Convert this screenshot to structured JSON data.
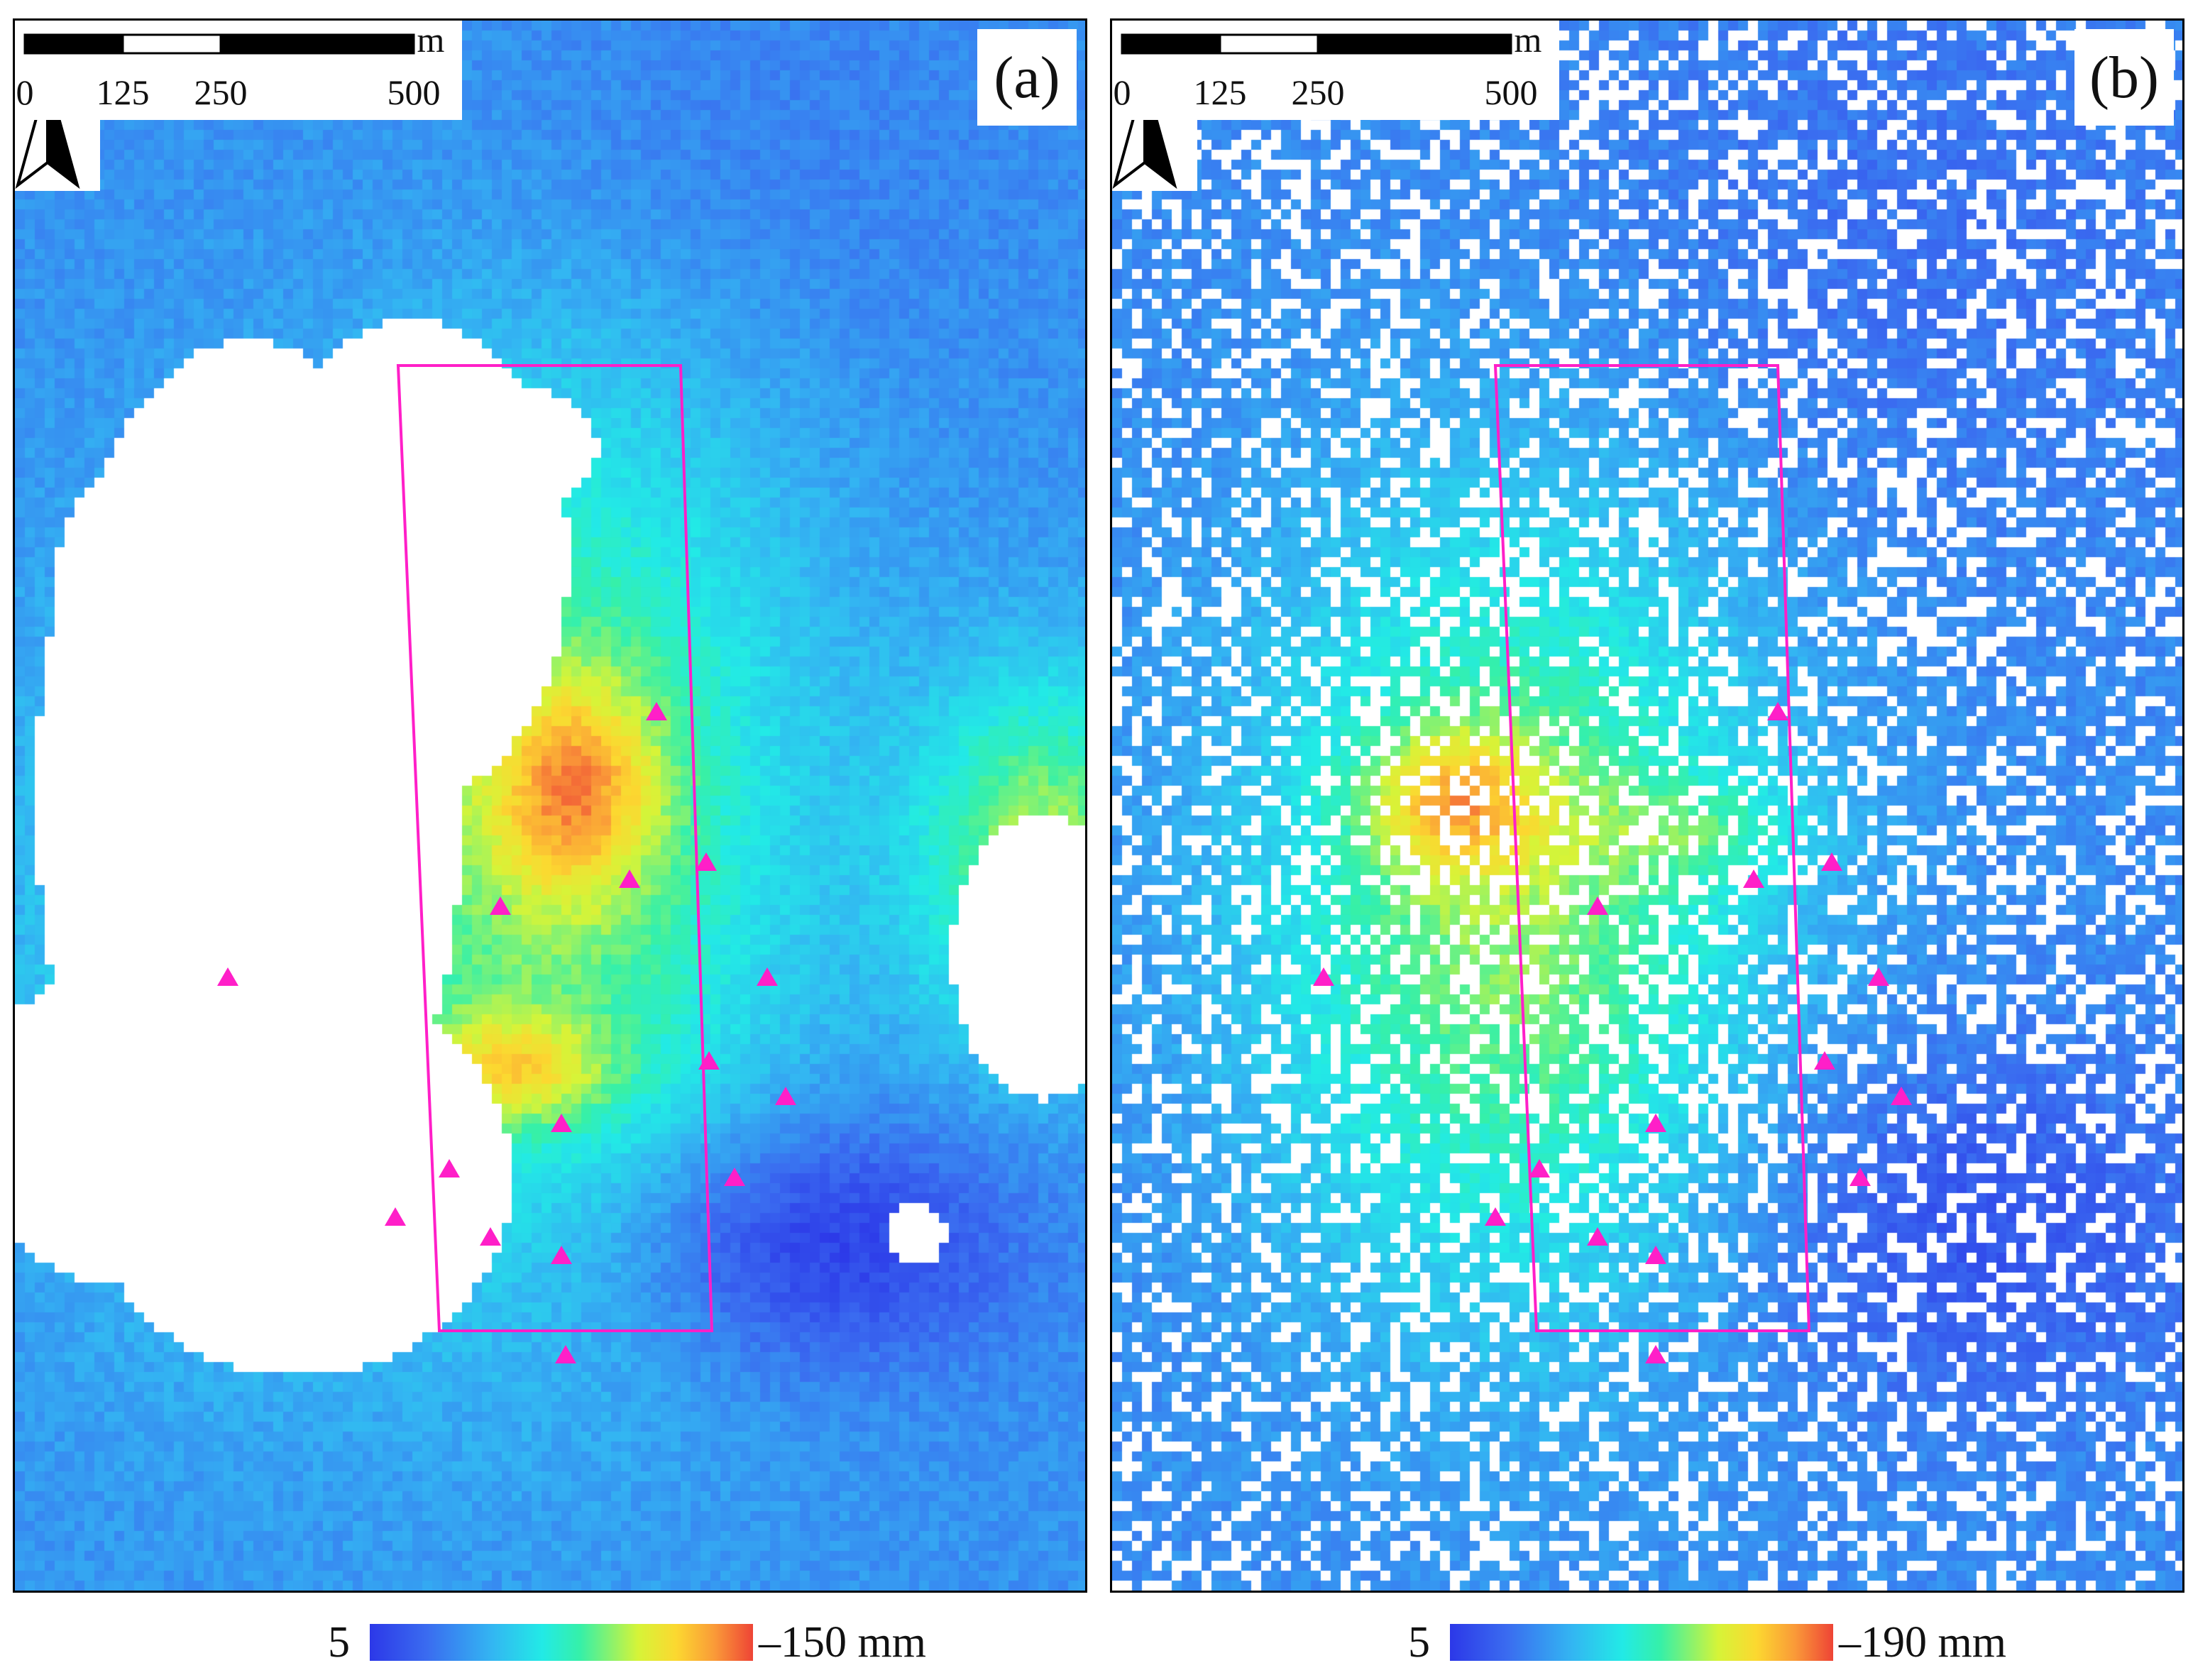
{
  "north_label": "N",
  "panels": [
    {
      "id": "a",
      "label": "(a)",
      "colorbar": {
        "min_label": "5",
        "max_label": "–150 mm"
      },
      "scale": {
        "unit": "m",
        "ticks": [
          "0",
          "125",
          "250",
          "500"
        ]
      }
    },
    {
      "id": "b",
      "label": "(b)",
      "colorbar": {
        "min_label": "5",
        "max_label": "–190 mm"
      },
      "scale": {
        "unit": "m",
        "ticks": [
          "0",
          "125",
          "250",
          "500"
        ]
      }
    }
  ],
  "colors": {
    "outline": "#ff1fc8",
    "marker": "#ff1fc8",
    "no_data": "#ffffff"
  },
  "legend_symbols": {
    "study_area": "rectangle-outline",
    "points": "triangle-marker"
  }
}
